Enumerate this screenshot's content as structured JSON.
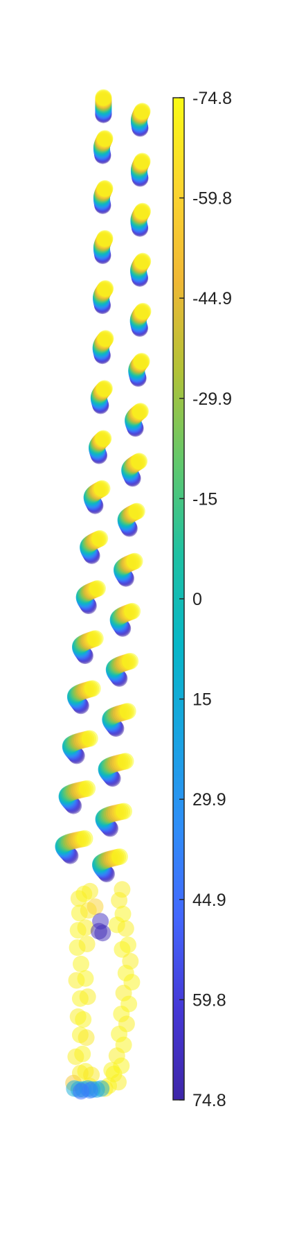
{
  "chart_data": {
    "type": "scatter",
    "title": "",
    "xlabel": "",
    "ylabel": "",
    "axes_visible": false,
    "grid": false,
    "legend": "none",
    "colormap": "parula",
    "colormap_stops": [
      "#3e26a8",
      "#4538d6",
      "#4367fd",
      "#2f8ef7",
      "#19a4e1",
      "#07b7c7",
      "#1fc1a2",
      "#62c86c",
      "#b2c237",
      "#f0b835",
      "#fbd52f",
      "#f9fb15"
    ],
    "point_opacity": 0.5,
    "colorbar": {
      "placement": "right",
      "min": -74.8,
      "max": 74.8,
      "top_value": -74.8,
      "bottom_value": 74.8,
      "ticks": [
        -74.8,
        -59.8,
        -44.9,
        -29.9,
        -15,
        0,
        15,
        29.9,
        44.9,
        59.8,
        74.8
      ],
      "tick_labels": [
        "-74.8",
        "-59.8",
        "-44.9",
        "-29.9",
        "-15",
        "0",
        "15",
        "29.9",
        "44.9",
        "59.8",
        "74.8"
      ]
    },
    "series": [
      {
        "type": "curl_clusters",
        "points_per_cluster": 26,
        "columns": [
          {
            "clusters": [
              {
                "x": 0.5,
                "y": 0.5,
                "shape": 0.0
              },
              {
                "x": 0.5,
                "y": 5.0,
                "shape": 0.15
              },
              {
                "x": 0.5,
                "y": 10.5,
                "shape": 0.15
              },
              {
                "x": 0.5,
                "y": 16.0,
                "shape": 0.15
              },
              {
                "x": 0.5,
                "y": 21.5,
                "shape": 0.2
              },
              {
                "x": 0.5,
                "y": 27.0,
                "shape": 0.22
              },
              {
                "x": 0.3,
                "y": 32.5,
                "shape": 0.26
              },
              {
                "x": 0.1,
                "y": 38.0,
                "shape": 0.3
              },
              {
                "x": -0.3,
                "y": 43.5,
                "shape": 0.48
              },
              {
                "x": -0.7,
                "y": 49.0,
                "shape": 0.55
              },
              {
                "x": -1.1,
                "y": 54.5,
                "shape": 0.62
              },
              {
                "x": -1.5,
                "y": 60.0,
                "shape": 0.7
              },
              {
                "x": -2.0,
                "y": 65.5,
                "shape": 0.8
              },
              {
                "x": -2.5,
                "y": 71.0,
                "shape": 0.9
              },
              {
                "x": -2.9,
                "y": 76.5,
                "shape": 0.95
              },
              {
                "x": -3.3,
                "y": 82.0,
                "shape": 1.0
              }
            ]
          },
          {
            "clusters": [
              {
                "x": 5.5,
                "y": 2.0,
                "shape": 0.15
              },
              {
                "x": 5.5,
                "y": 7.5,
                "shape": 0.15
              },
              {
                "x": 5.5,
                "y": 13.0,
                "shape": 0.18
              },
              {
                "x": 5.5,
                "y": 18.5,
                "shape": 0.2
              },
              {
                "x": 5.5,
                "y": 24.0,
                "shape": 0.22
              },
              {
                "x": 5.3,
                "y": 29.5,
                "shape": 0.24
              },
              {
                "x": 5.0,
                "y": 35.0,
                "shape": 0.35
              },
              {
                "x": 4.7,
                "y": 40.5,
                "shape": 0.45
              },
              {
                "x": 4.3,
                "y": 46.0,
                "shape": 0.52
              },
              {
                "x": 3.9,
                "y": 51.5,
                "shape": 0.6
              },
              {
                "x": 3.5,
                "y": 57.0,
                "shape": 0.66
              },
              {
                "x": 3.1,
                "y": 62.5,
                "shape": 0.75
              },
              {
                "x": 2.7,
                "y": 68.0,
                "shape": 0.82
              },
              {
                "x": 2.3,
                "y": 73.5,
                "shape": 0.9
              },
              {
                "x": 2.0,
                "y": 79.0,
                "shape": 0.95
              },
              {
                "x": 1.5,
                "y": 84.0,
                "shape": 0.9
              }
            ]
          }
        ]
      },
      {
        "type": "scatter",
        "name": "",
        "points": [
          {
            "x": -2.8,
            "y": 88.0,
            "c": -70
          },
          {
            "x": -2.1,
            "y": 87.5,
            "c": -72
          },
          {
            "x": -1.3,
            "y": 87.2,
            "c": -70
          },
          {
            "x": -2.7,
            "y": 89.6,
            "c": -72
          },
          {
            "x": -1.5,
            "y": 89.3,
            "c": -68
          },
          {
            "x": -0.6,
            "y": 88.9,
            "c": -60
          },
          {
            "x": -2.9,
            "y": 91.5,
            "c": -72
          },
          {
            "x": -1.9,
            "y": 91.2,
            "c": -70
          },
          {
            "x": -3.0,
            "y": 93.4,
            "c": -72
          },
          {
            "x": -1.7,
            "y": 93.0,
            "c": -70
          },
          {
            "x": -2.5,
            "y": 95.2,
            "c": -72
          },
          {
            "x": -3.1,
            "y": 97.0,
            "c": -70
          },
          {
            "x": -1.9,
            "y": 96.8,
            "c": -72
          },
          {
            "x": -2.6,
            "y": 99.0,
            "c": -72
          },
          {
            "x": -1.6,
            "y": 98.8,
            "c": -70
          },
          {
            "x": -2.9,
            "y": 101.0,
            "c": -70
          },
          {
            "x": -2.2,
            "y": 101.3,
            "c": -72
          },
          {
            "x": -2.6,
            "y": 103.0,
            "c": -72
          },
          {
            "x": -1.8,
            "y": 103.3,
            "c": -68
          },
          {
            "x": -2.3,
            "y": 105.1,
            "c": -72
          },
          {
            "x": -3.2,
            "y": 105.4,
            "c": -70
          },
          {
            "x": -1.9,
            "y": 107.0,
            "c": -72
          },
          {
            "x": -2.6,
            "y": 107.2,
            "c": -70
          },
          {
            "x": -3.5,
            "y": 108.3,
            "c": -55
          },
          {
            "x": -1.4,
            "y": 108.6,
            "c": -72
          },
          {
            "x": -1.1,
            "y": 107.4,
            "c": -68
          },
          {
            "x": 0.1,
            "y": 90.5,
            "c": 68
          },
          {
            "x": -0.1,
            "y": 91.6,
            "c": 72
          },
          {
            "x": 0.4,
            "y": 91.8,
            "c": 70
          },
          {
            "x": 2.6,
            "y": 88.2,
            "c": -70
          },
          {
            "x": 3.1,
            "y": 89.7,
            "c": -72
          },
          {
            "x": 2.3,
            "y": 90.9,
            "c": -72
          },
          {
            "x": 3.5,
            "y": 91.3,
            "c": -70
          },
          {
            "x": 3.8,
            "y": 93.1,
            "c": -72
          },
          {
            "x": 3.0,
            "y": 93.6,
            "c": -72
          },
          {
            "x": 4.1,
            "y": 94.9,
            "c": -70
          },
          {
            "x": 3.5,
            "y": 96.2,
            "c": -72
          },
          {
            "x": 4.3,
            "y": 97.2,
            "c": -72
          },
          {
            "x": 3.2,
            "y": 98.4,
            "c": -70
          },
          {
            "x": 3.9,
            "y": 99.6,
            "c": -72
          },
          {
            "x": 2.9,
            "y": 100.7,
            "c": -72
          },
          {
            "x": 3.6,
            "y": 101.8,
            "c": -70
          },
          {
            "x": 2.6,
            "y": 102.9,
            "c": -72
          },
          {
            "x": 3.2,
            "y": 104.1,
            "c": -72
          },
          {
            "x": 2.3,
            "y": 105.3,
            "c": -70
          },
          {
            "x": 2.9,
            "y": 106.4,
            "c": -72
          },
          {
            "x": 1.9,
            "y": 107.3,
            "c": -72
          },
          {
            "x": 2.5,
            "y": 108.2,
            "c": -70
          },
          {
            "x": 1.2,
            "y": 108.6,
            "c": -72
          },
          {
            "x": 0.7,
            "y": 108.9,
            "c": -70
          },
          {
            "x": 1.6,
            "y": 106.9,
            "c": -72
          },
          {
            "x": 3.0,
            "y": 87.0,
            "c": -70
          },
          {
            "x": -3.4,
            "y": 108.9,
            "c": 15
          },
          {
            "x": -2.8,
            "y": 109.0,
            "c": 20
          },
          {
            "x": -2.2,
            "y": 109.0,
            "c": 18
          },
          {
            "x": -1.6,
            "y": 108.9,
            "c": 22
          },
          {
            "x": -1.0,
            "y": 109.0,
            "c": 28
          },
          {
            "x": -0.4,
            "y": 109.0,
            "c": 20
          },
          {
            "x": 0.2,
            "y": 108.9,
            "c": 18
          },
          {
            "x": -2.5,
            "y": 109.2,
            "c": 45
          },
          {
            "x": -1.3,
            "y": 109.1,
            "c": 40
          }
        ]
      }
    ]
  }
}
